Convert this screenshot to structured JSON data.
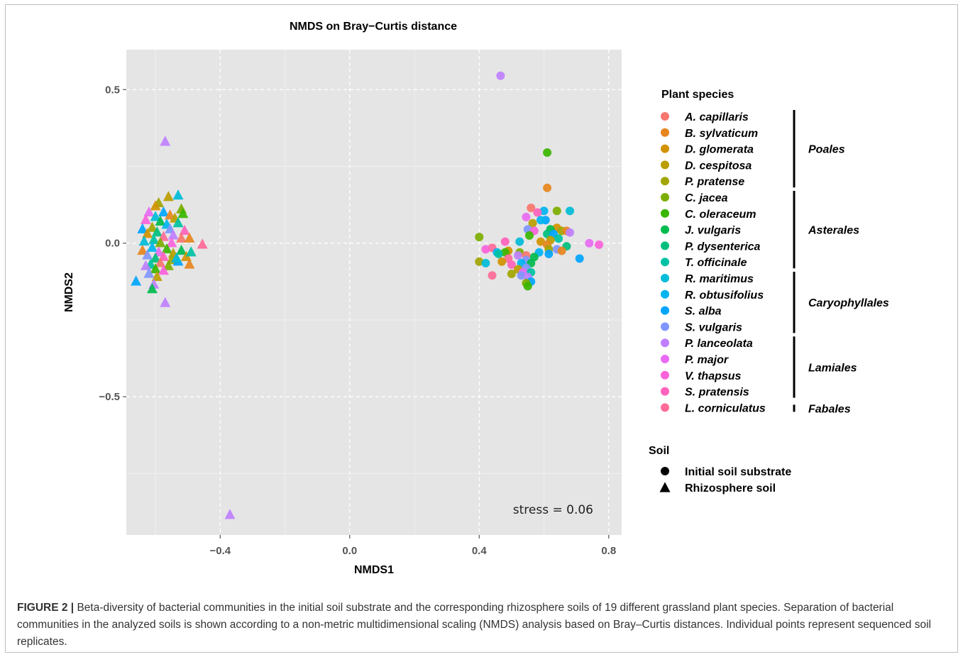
{
  "chart_data": {
    "type": "scatter",
    "title": "NMDS on Bray−Curtis distance",
    "xlabel": "NMDS1",
    "ylabel": "NMDS2",
    "xlim": [
      -0.69,
      0.84
    ],
    "ylim": [
      -0.95,
      0.63
    ],
    "xticks": [
      -0.4,
      0.0,
      0.4,
      0.8
    ],
    "xtick_labels": [
      "−0.4",
      "0.0",
      "0.4",
      "0.8"
    ],
    "yticks": [
      -0.5,
      0.0,
      0.5
    ],
    "ytick_labels": [
      "−0.5",
      "0.0",
      "0.5"
    ],
    "grid": true,
    "annotation": "stress = 0.06",
    "legend_position": "right",
    "legend_species_title": "Plant species",
    "legend_soil_title": "Soil",
    "species": [
      {
        "name": "A. capillaris",
        "color": "#F8766D"
      },
      {
        "name": "B. sylvaticum",
        "color": "#E7851E"
      },
      {
        "name": "D. glomerata",
        "color": "#D39200"
      },
      {
        "name": "D. cespitosa",
        "color": "#BB9D00"
      },
      {
        "name": "P. pratense",
        "color": "#A2A500"
      },
      {
        "name": "C. jacea",
        "color": "#7CAE00"
      },
      {
        "name": "C. oleraceum",
        "color": "#39B600"
      },
      {
        "name": "J. vulgaris",
        "color": "#00BB4E"
      },
      {
        "name": "P. dysenterica",
        "color": "#00BF7D"
      },
      {
        "name": "T. officinale",
        "color": "#00C1A3"
      },
      {
        "name": "R. maritimus",
        "color": "#00BCD8"
      },
      {
        "name": "R. obtusifolius",
        "color": "#00B4F0"
      },
      {
        "name": "S. alba",
        "color": "#00A5FF"
      },
      {
        "name": "S. vulgaris",
        "color": "#7F96FF"
      },
      {
        "name": "P. lanceolata",
        "color": "#BF80FF"
      },
      {
        "name": "P. major",
        "color": "#E76BF3"
      },
      {
        "name": "V. thapsus",
        "color": "#FA62DB"
      },
      {
        "name": "S. pratensis",
        "color": "#FF62BC"
      },
      {
        "name": "L. corniculatus",
        "color": "#FF6A98"
      }
    ],
    "orders": [
      {
        "name": "Poales",
        "from": 0,
        "to": 4
      },
      {
        "name": "Asterales",
        "from": 5,
        "to": 9
      },
      {
        "name": "Caryophyllales",
        "from": 10,
        "to": 13
      },
      {
        "name": "Lamiales",
        "from": 14,
        "to": 17
      },
      {
        "name": "Fabales",
        "from": 18,
        "to": 18
      }
    ],
    "soil_types": [
      {
        "name": "Initial soil substrate",
        "shape": "circle"
      },
      {
        "name": "Rhizosphere soil",
        "shape": "triangle"
      }
    ],
    "series": [
      {
        "soil": "Initial soil substrate",
        "shape": "circle",
        "points": [
          [
            0.466,
            0.545,
            14
          ],
          [
            0.61,
            0.295,
            6
          ],
          [
            0.61,
            0.18,
            1
          ],
          [
            0.56,
            0.115,
            0
          ],
          [
            0.64,
            0.105,
            5
          ],
          [
            0.68,
            0.105,
            10
          ],
          [
            0.6,
            0.105,
            11
          ],
          [
            0.58,
            0.1,
            17
          ],
          [
            0.545,
            0.085,
            15
          ],
          [
            0.605,
            0.075,
            12
          ],
          [
            0.59,
            0.075,
            11
          ],
          [
            0.565,
            0.065,
            3
          ],
          [
            0.64,
            0.05,
            2
          ],
          [
            0.62,
            0.045,
            7
          ],
          [
            0.55,
            0.045,
            13
          ],
          [
            0.57,
            0.04,
            16
          ],
          [
            0.655,
            0.04,
            4
          ],
          [
            0.67,
            0.04,
            1
          ],
          [
            0.68,
            0.035,
            14
          ],
          [
            0.61,
            0.03,
            8
          ],
          [
            0.63,
            0.03,
            12
          ],
          [
            0.555,
            0.025,
            6
          ],
          [
            0.4,
            0.02,
            5
          ],
          [
            0.645,
            0.015,
            9
          ],
          [
            0.62,
            0.01,
            3
          ],
          [
            0.74,
            0.0,
            15
          ],
          [
            0.77,
            -0.005,
            16
          ],
          [
            0.525,
            0.005,
            10
          ],
          [
            0.59,
            0.005,
            2
          ],
          [
            0.48,
            0.005,
            17
          ],
          [
            0.61,
            -0.005,
            1
          ],
          [
            0.67,
            -0.01,
            8
          ],
          [
            0.44,
            -0.015,
            18
          ],
          [
            0.42,
            -0.02,
            16
          ],
          [
            0.49,
            -0.025,
            2
          ],
          [
            0.455,
            -0.03,
            11
          ],
          [
            0.48,
            -0.03,
            6
          ],
          [
            0.525,
            -0.03,
            5
          ],
          [
            0.585,
            -0.03,
            11
          ],
          [
            0.615,
            -0.02,
            4
          ],
          [
            0.64,
            -0.02,
            13
          ],
          [
            0.655,
            -0.025,
            1
          ],
          [
            0.46,
            -0.035,
            9
          ],
          [
            0.615,
            -0.035,
            12
          ],
          [
            0.52,
            -0.04,
            14
          ],
          [
            0.545,
            -0.04,
            0
          ],
          [
            0.57,
            -0.045,
            7
          ],
          [
            0.49,
            -0.05,
            18
          ],
          [
            0.545,
            -0.055,
            13
          ],
          [
            0.71,
            -0.05,
            12
          ],
          [
            0.4,
            -0.06,
            4
          ],
          [
            0.42,
            -0.065,
            10
          ],
          [
            0.47,
            -0.06,
            2
          ],
          [
            0.53,
            -0.065,
            11
          ],
          [
            0.56,
            -0.065,
            7
          ],
          [
            0.5,
            -0.07,
            17
          ],
          [
            0.545,
            -0.08,
            13
          ],
          [
            0.52,
            -0.085,
            3
          ],
          [
            0.535,
            -0.095,
            15
          ],
          [
            0.56,
            -0.095,
            9
          ],
          [
            0.5,
            -0.1,
            4
          ],
          [
            0.53,
            -0.105,
            13
          ],
          [
            0.44,
            -0.105,
            18
          ],
          [
            0.55,
            -0.11,
            14
          ],
          [
            0.56,
            -0.125,
            12
          ],
          [
            0.545,
            -0.13,
            5
          ],
          [
            0.55,
            -0.14,
            6
          ]
        ]
      },
      {
        "soil": "Rhizosphere soil",
        "shape": "triangle",
        "points": [
          [
            -0.57,
            0.33,
            14
          ],
          [
            -0.37,
            -0.885,
            14
          ],
          [
            -0.57,
            -0.195,
            14
          ],
          [
            -0.53,
            0.155,
            10
          ],
          [
            -0.56,
            0.15,
            3
          ],
          [
            -0.59,
            0.13,
            4
          ],
          [
            -0.6,
            0.12,
            2
          ],
          [
            -0.52,
            0.11,
            5
          ],
          [
            -0.62,
            0.1,
            15
          ],
          [
            -0.575,
            0.1,
            12
          ],
          [
            -0.555,
            0.09,
            1
          ],
          [
            -0.515,
            0.095,
            6
          ],
          [
            -0.6,
            0.085,
            10
          ],
          [
            -0.54,
            0.08,
            3
          ],
          [
            -0.63,
            0.075,
            16
          ],
          [
            -0.585,
            0.07,
            7
          ],
          [
            -0.53,
            0.065,
            9
          ],
          [
            -0.565,
            0.06,
            11
          ],
          [
            -0.61,
            0.05,
            4
          ],
          [
            -0.64,
            0.045,
            12
          ],
          [
            -0.555,
            0.045,
            13
          ],
          [
            -0.51,
            0.04,
            17
          ],
          [
            -0.595,
            0.035,
            8
          ],
          [
            -0.625,
            0.03,
            2
          ],
          [
            -0.545,
            0.025,
            14
          ],
          [
            -0.575,
            0.02,
            18
          ],
          [
            -0.605,
            0.01,
            9
          ],
          [
            -0.52,
            0.015,
            0
          ],
          [
            -0.495,
            0.015,
            1
          ],
          [
            -0.635,
            0.005,
            10
          ],
          [
            -0.585,
            0.0,
            5
          ],
          [
            -0.55,
            0.0,
            16
          ],
          [
            -0.455,
            -0.005,
            18
          ],
          [
            -0.61,
            -0.015,
            11
          ],
          [
            -0.565,
            -0.02,
            6
          ],
          [
            -0.64,
            -0.025,
            1
          ],
          [
            -0.52,
            -0.025,
            7
          ],
          [
            -0.59,
            -0.03,
            15
          ],
          [
            -0.545,
            -0.035,
            3
          ],
          [
            -0.625,
            -0.04,
            13
          ],
          [
            -0.575,
            -0.045,
            17
          ],
          [
            -0.505,
            -0.045,
            2
          ],
          [
            -0.6,
            -0.05,
            8
          ],
          [
            -0.55,
            -0.055,
            4
          ],
          [
            -0.53,
            -0.06,
            12
          ],
          [
            -0.585,
            -0.065,
            0
          ],
          [
            -0.615,
            -0.07,
            9
          ],
          [
            -0.495,
            -0.07,
            1
          ],
          [
            -0.56,
            -0.075,
            5
          ],
          [
            -0.63,
            -0.075,
            14
          ],
          [
            -0.6,
            -0.085,
            6
          ],
          [
            -0.575,
            -0.09,
            16
          ],
          [
            -0.62,
            -0.1,
            13
          ],
          [
            -0.595,
            -0.11,
            3
          ],
          [
            -0.66,
            -0.125,
            12
          ],
          [
            -0.605,
            -0.135,
            14
          ],
          [
            -0.61,
            -0.15,
            7
          ],
          [
            -0.535,
            -0.05,
            10
          ],
          [
            -0.49,
            -0.03,
            9
          ]
        ]
      }
    ]
  },
  "caption": {
    "label": "FIGURE 2 |",
    "text": " Beta-diversity of bacterial communities in the initial soil substrate and the corresponding rhizosphere soils of 19 different grassland plant species. Separation of bacterial communities in the analyzed soils is shown according to a non-metric multidimensional scaling (NMDS) analysis based on Bray–Curtis distances. Individual points represent sequenced soil replicates."
  }
}
